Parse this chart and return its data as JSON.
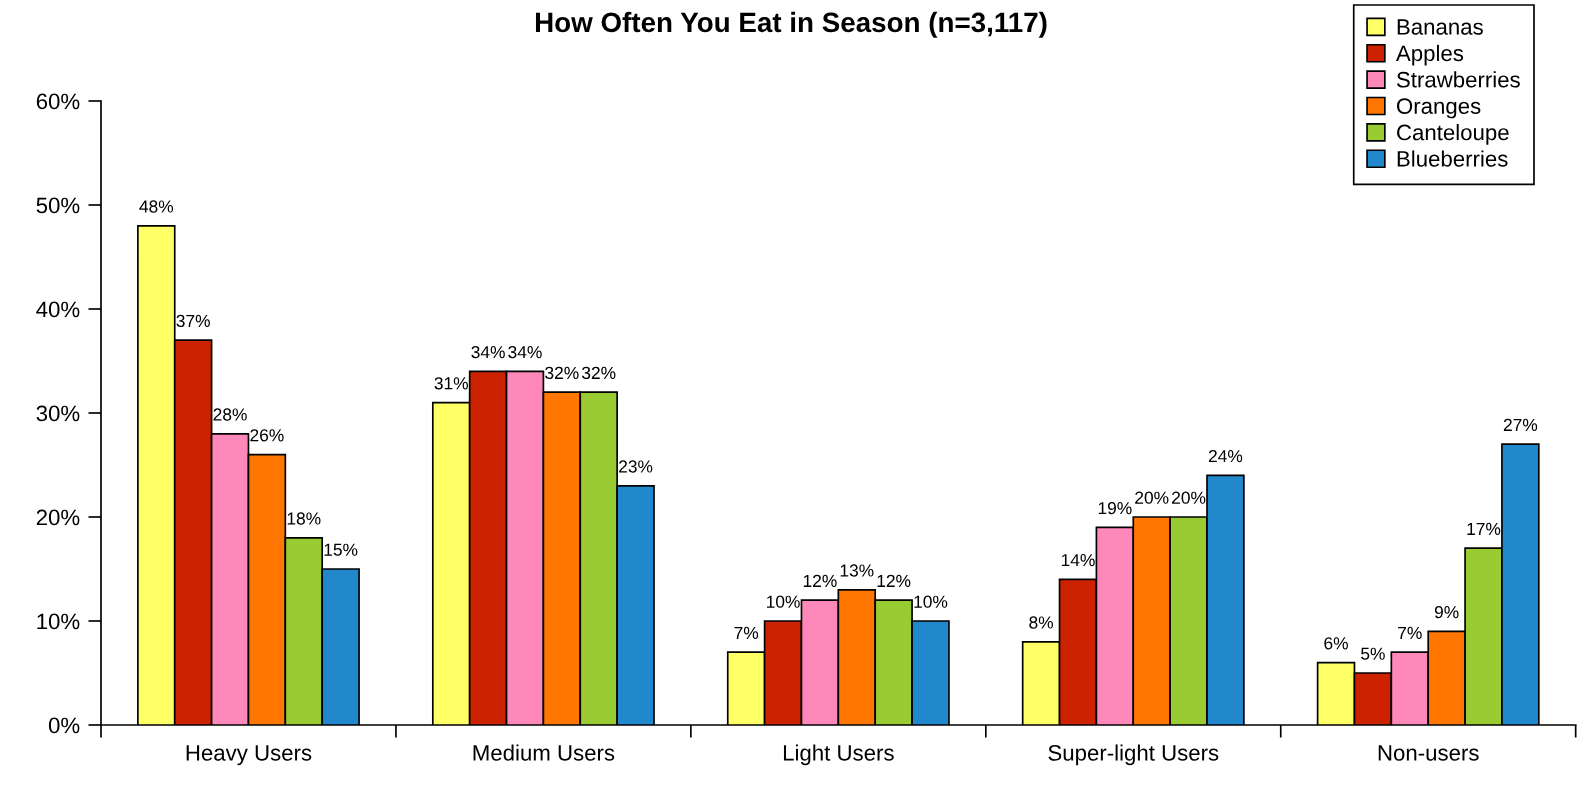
{
  "chart_data": {
    "type": "bar",
    "title": "How Often You Eat in Season (n=3,117)",
    "categories": [
      "Heavy Users",
      "Medium Users",
      "Light Users",
      "Super-light Users",
      "Non-users"
    ],
    "series": [
      {
        "name": "Bananas",
        "color": "#ffff66",
        "values": [
          48,
          31,
          7,
          8,
          6
        ],
        "value_labels": [
          "48%",
          "31%",
          "7%",
          "8%",
          "6%"
        ]
      },
      {
        "name": "Apples",
        "color": "#cc2200",
        "values": [
          37,
          34,
          10,
          14,
          5
        ],
        "value_labels": [
          "37%",
          "34%",
          "10%",
          "14%",
          "5%"
        ]
      },
      {
        "name": "Strawberries",
        "color": "#ff88bb",
        "values": [
          28,
          34,
          12,
          19,
          7
        ],
        "value_labels": [
          "28%",
          "34%",
          "12%",
          "19%",
          "7%"
        ]
      },
      {
        "name": "Oranges",
        "color": "#ff7700",
        "values": [
          26,
          32,
          13,
          20,
          9
        ],
        "value_labels": [
          "26%",
          "32%",
          "13%",
          "20%",
          "9%"
        ]
      },
      {
        "name": "Canteloupe",
        "color": "#99cc33",
        "values": [
          18,
          32,
          12,
          20,
          17
        ],
        "value_labels": [
          "18%",
          "32%",
          "12%",
          "20%",
          "17%"
        ]
      },
      {
        "name": "Blueberries",
        "color": "#2288cc",
        "values": [
          15,
          23,
          10,
          24,
          27
        ],
        "value_labels": [
          "15%",
          "23%",
          "10%",
          "24%",
          "27%"
        ]
      }
    ],
    "ylim": [
      0,
      60
    ],
    "yticks": [
      {
        "value": 0,
        "label": "0%"
      },
      {
        "value": 10,
        "label": "10%"
      },
      {
        "value": 20,
        "label": "20%"
      },
      {
        "value": 30,
        "label": "30%"
      },
      {
        "value": 40,
        "label": "40%"
      },
      {
        "value": 50,
        "label": "50%"
      },
      {
        "value": 60,
        "label": "60%"
      }
    ],
    "legend": "top right"
  }
}
